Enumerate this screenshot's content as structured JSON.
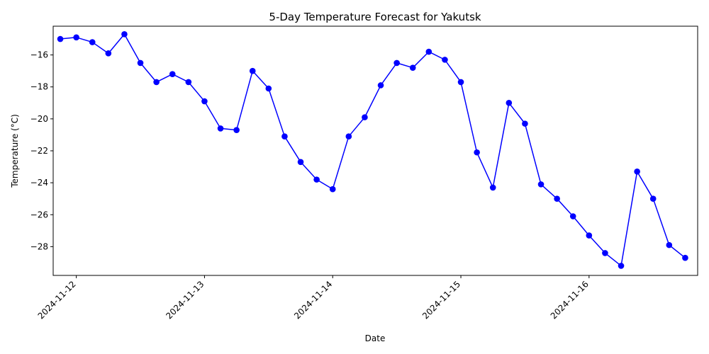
{
  "chart_data": {
    "type": "line",
    "title": "5-Day Temperature Forecast for Yakutsk",
    "xlabel": "Date",
    "ylabel": "Temperature (°C)",
    "grid": false,
    "legend": "none",
    "colors": {
      "line": "#0000ff",
      "marker": "#0000ff"
    },
    "x_ticks": [
      "2024-11-12",
      "2024-11-13",
      "2024-11-14",
      "2024-11-15",
      "2024-11-16"
    ],
    "y_ticks": [
      -16,
      -18,
      -20,
      -22,
      -24,
      -26,
      -28
    ],
    "y_tick_labels": [
      "−16",
      "−18",
      "−20",
      "−22",
      "−24",
      "−26",
      "−28"
    ],
    "xlim": [
      "2024-11-11 19:40",
      "2024-11-16 20:20"
    ],
    "ylim": [
      -29.8,
      -14.2
    ],
    "series": [
      {
        "x": [
          "2024-11-11 21:00",
          "2024-11-12 00:00",
          "2024-11-12 03:00",
          "2024-11-12 06:00",
          "2024-11-12 09:00",
          "2024-11-12 12:00",
          "2024-11-12 15:00",
          "2024-11-12 18:00",
          "2024-11-12 21:00",
          "2024-11-13 00:00",
          "2024-11-13 03:00",
          "2024-11-13 06:00",
          "2024-11-13 09:00",
          "2024-11-13 12:00",
          "2024-11-13 15:00",
          "2024-11-13 18:00",
          "2024-11-13 21:00",
          "2024-11-14 00:00",
          "2024-11-14 03:00",
          "2024-11-14 06:00",
          "2024-11-14 09:00",
          "2024-11-14 12:00",
          "2024-11-14 15:00",
          "2024-11-14 18:00",
          "2024-11-14 21:00",
          "2024-11-15 00:00",
          "2024-11-15 03:00",
          "2024-11-15 06:00",
          "2024-11-15 09:00",
          "2024-11-15 12:00",
          "2024-11-15 15:00",
          "2024-11-15 18:00",
          "2024-11-15 21:00",
          "2024-11-16 00:00",
          "2024-11-16 03:00",
          "2024-11-16 06:00",
          "2024-11-16 09:00",
          "2024-11-16 12:00",
          "2024-11-16 15:00",
          "2024-11-16 18:00"
        ],
        "values": [
          -15.0,
          -14.9,
          -15.2,
          -15.9,
          -14.7,
          -16.5,
          -17.7,
          -17.2,
          -17.7,
          -18.9,
          -20.6,
          -20.7,
          -17.0,
          -18.1,
          -21.1,
          -22.7,
          -23.8,
          -24.4,
          -21.1,
          -19.9,
          -17.9,
          -16.5,
          -16.8,
          -15.8,
          -16.3,
          -17.7,
          -22.1,
          -24.3,
          -19.0,
          -20.3,
          -24.1,
          -25.0,
          -26.1,
          -27.3,
          -28.4,
          -29.2,
          -23.3,
          -25.0,
          -27.9,
          -28.7
        ]
      }
    ]
  }
}
